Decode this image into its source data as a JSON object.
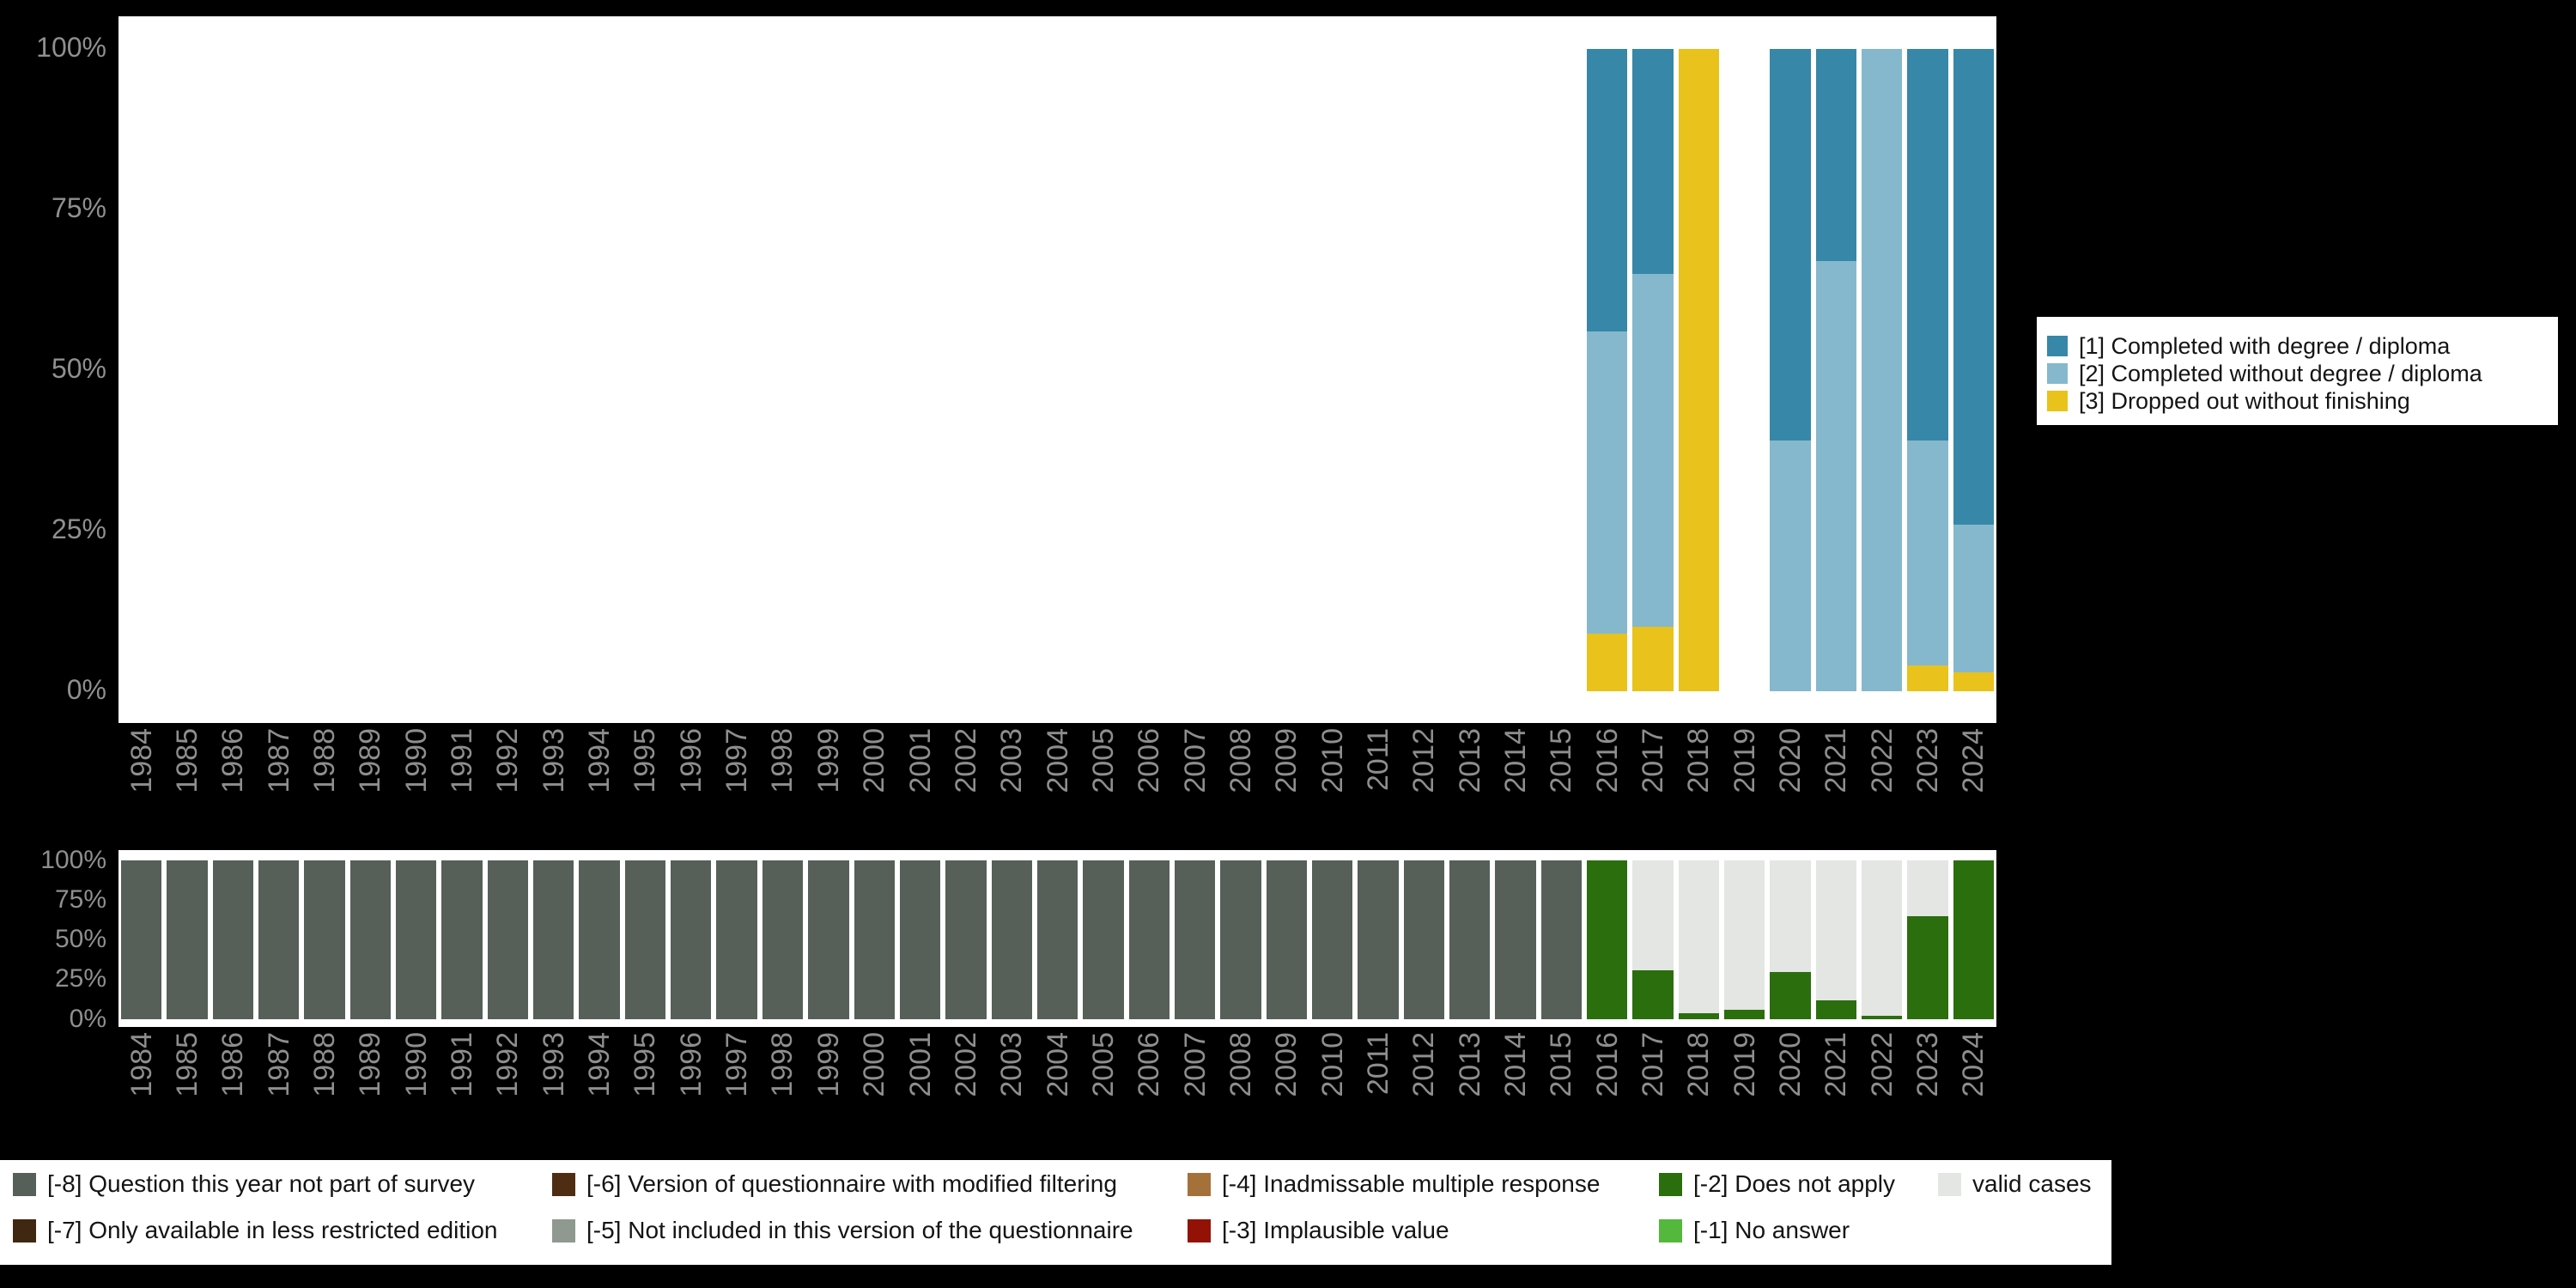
{
  "page": {
    "background": "#000000"
  },
  "chart_data": [
    {
      "type": "bar",
      "stacked": true,
      "unit": "percent",
      "grid": false,
      "legend_position": "right",
      "ylim": [
        0,
        100
      ],
      "yticks": [
        0,
        25,
        50,
        75,
        100
      ],
      "ytick_suffix": "%",
      "stack_order": "reverse",
      "categories": [
        "1984",
        "1985",
        "1986",
        "1987",
        "1988",
        "1989",
        "1990",
        "1991",
        "1992",
        "1993",
        "1994",
        "1995",
        "1996",
        "1997",
        "1998",
        "1999",
        "2000",
        "2001",
        "2002",
        "2003",
        "2004",
        "2005",
        "2006",
        "2007",
        "2008",
        "2009",
        "2010",
        "2011",
        "2012",
        "2013",
        "2014",
        "2015",
        "2016",
        "2017",
        "2018",
        "2019",
        "2020",
        "2021",
        "2022",
        "2023",
        "2024"
      ],
      "series": [
        {
          "name": "[1] Completed with degree / diploma",
          "color": "#3787a8",
          "values": [
            null,
            null,
            null,
            null,
            null,
            null,
            null,
            null,
            null,
            null,
            null,
            null,
            null,
            null,
            null,
            null,
            null,
            null,
            null,
            null,
            null,
            null,
            null,
            null,
            null,
            null,
            null,
            null,
            null,
            null,
            null,
            null,
            44,
            35,
            0,
            null,
            61,
            33,
            0,
            61,
            74
          ]
        },
        {
          "name": "[2] Completed without degree / diploma",
          "color": "#85b8cd",
          "values": [
            null,
            null,
            null,
            null,
            null,
            null,
            null,
            null,
            null,
            null,
            null,
            null,
            null,
            null,
            null,
            null,
            null,
            null,
            null,
            null,
            null,
            null,
            null,
            null,
            null,
            null,
            null,
            null,
            null,
            null,
            null,
            null,
            47,
            55,
            0,
            null,
            39,
            67,
            100,
            35,
            23
          ]
        },
        {
          "name": "[3] Dropped out without finishing",
          "color": "#e9c21b",
          "values": [
            null,
            null,
            null,
            null,
            null,
            null,
            null,
            null,
            null,
            null,
            null,
            null,
            null,
            null,
            null,
            null,
            null,
            null,
            null,
            null,
            null,
            null,
            null,
            null,
            null,
            null,
            null,
            null,
            null,
            null,
            null,
            null,
            9,
            10,
            100,
            null,
            0,
            0,
            0,
            4,
            3
          ]
        }
      ]
    },
    {
      "type": "bar",
      "stacked": true,
      "unit": "percent",
      "grid": false,
      "legend_position": "bottom",
      "ylim": [
        0,
        100
      ],
      "yticks": [
        0,
        25,
        50,
        75,
        100
      ],
      "ytick_suffix": "%",
      "stack_order": "forward",
      "categories": [
        "1984",
        "1985",
        "1986",
        "1987",
        "1988",
        "1989",
        "1990",
        "1991",
        "1992",
        "1993",
        "1994",
        "1995",
        "1996",
        "1997",
        "1998",
        "1999",
        "2000",
        "2001",
        "2002",
        "2003",
        "2004",
        "2005",
        "2006",
        "2007",
        "2008",
        "2009",
        "2010",
        "2011",
        "2012",
        "2013",
        "2014",
        "2015",
        "2016",
        "2017",
        "2018",
        "2019",
        "2020",
        "2021",
        "2022",
        "2023",
        "2024"
      ],
      "series": [
        {
          "name": "[-8] Question this year not part of survey",
          "color": "#565f58",
          "values": [
            100,
            100,
            100,
            100,
            100,
            100,
            100,
            100,
            100,
            100,
            100,
            100,
            100,
            100,
            100,
            100,
            100,
            100,
            100,
            100,
            100,
            100,
            100,
            100,
            100,
            100,
            100,
            100,
            100,
            100,
            100,
            100,
            null,
            null,
            null,
            null,
            null,
            null,
            null,
            null,
            null
          ]
        },
        {
          "name": "[-2] Does not apply",
          "color": "#2b6e0e",
          "values": [
            null,
            null,
            null,
            null,
            null,
            null,
            null,
            null,
            null,
            null,
            null,
            null,
            null,
            null,
            null,
            null,
            null,
            null,
            null,
            null,
            null,
            null,
            null,
            null,
            null,
            null,
            null,
            null,
            null,
            null,
            null,
            null,
            100,
            31,
            4,
            6,
            30,
            12,
            2,
            65,
            100
          ]
        },
        {
          "name": "valid cases",
          "color": "#e3e6e2",
          "values": [
            null,
            null,
            null,
            null,
            null,
            null,
            null,
            null,
            null,
            null,
            null,
            null,
            null,
            null,
            null,
            null,
            null,
            null,
            null,
            null,
            null,
            null,
            null,
            null,
            null,
            null,
            null,
            null,
            null,
            null,
            null,
            null,
            0,
            69,
            96,
            94,
            70,
            88,
            98,
            35,
            0
          ]
        }
      ]
    }
  ],
  "bottom_legend": {
    "columns": [
      [
        {
          "label": "[-8] Question this year not part of survey",
          "color": "#565f58"
        },
        {
          "label": "[-7] Only available in less restricted edition",
          "color": "#3f2711"
        }
      ],
      [
        {
          "label": "[-6] Version of questionnaire with modified filtering",
          "color": "#4e2d12"
        },
        {
          "label": "[-5] Not included in this version of the questionnaire",
          "color": "#8f998f"
        }
      ],
      [
        {
          "label": "[-4] Inadmissable multiple response",
          "color": "#a5713a"
        },
        {
          "label": "[-3] Implausible value",
          "color": "#941205"
        }
      ],
      [
        {
          "label": "[-2] Does not apply",
          "color": "#2b6e0e"
        },
        {
          "label": "[-1] No answer",
          "color": "#54b83c"
        }
      ],
      [
        {
          "label": "valid cases",
          "color": "#e3e6e2"
        }
      ]
    ]
  }
}
